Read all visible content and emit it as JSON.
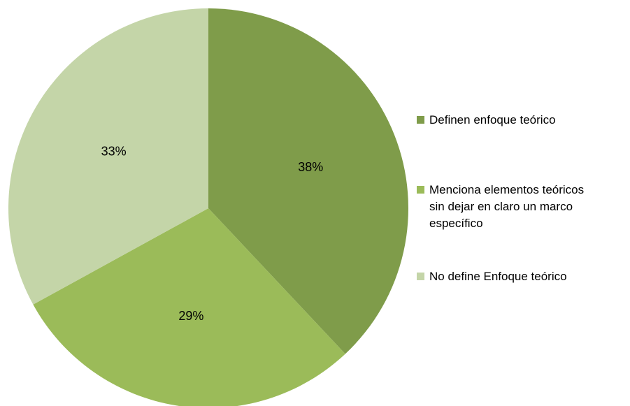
{
  "chart_data": {
    "type": "pie",
    "categories": [
      "Definen enfoque teórico",
      "Menciona elementos teóricos sin dejar en claro un marco específico",
      "No define Enfoque teórico"
    ],
    "values": [
      38,
      29,
      33
    ],
    "value_labels": [
      "38%",
      "29%",
      "33%"
    ],
    "colors": [
      "#7f9c4a",
      "#9bbb59",
      "#c4d5a8"
    ],
    "legend": "right"
  }
}
